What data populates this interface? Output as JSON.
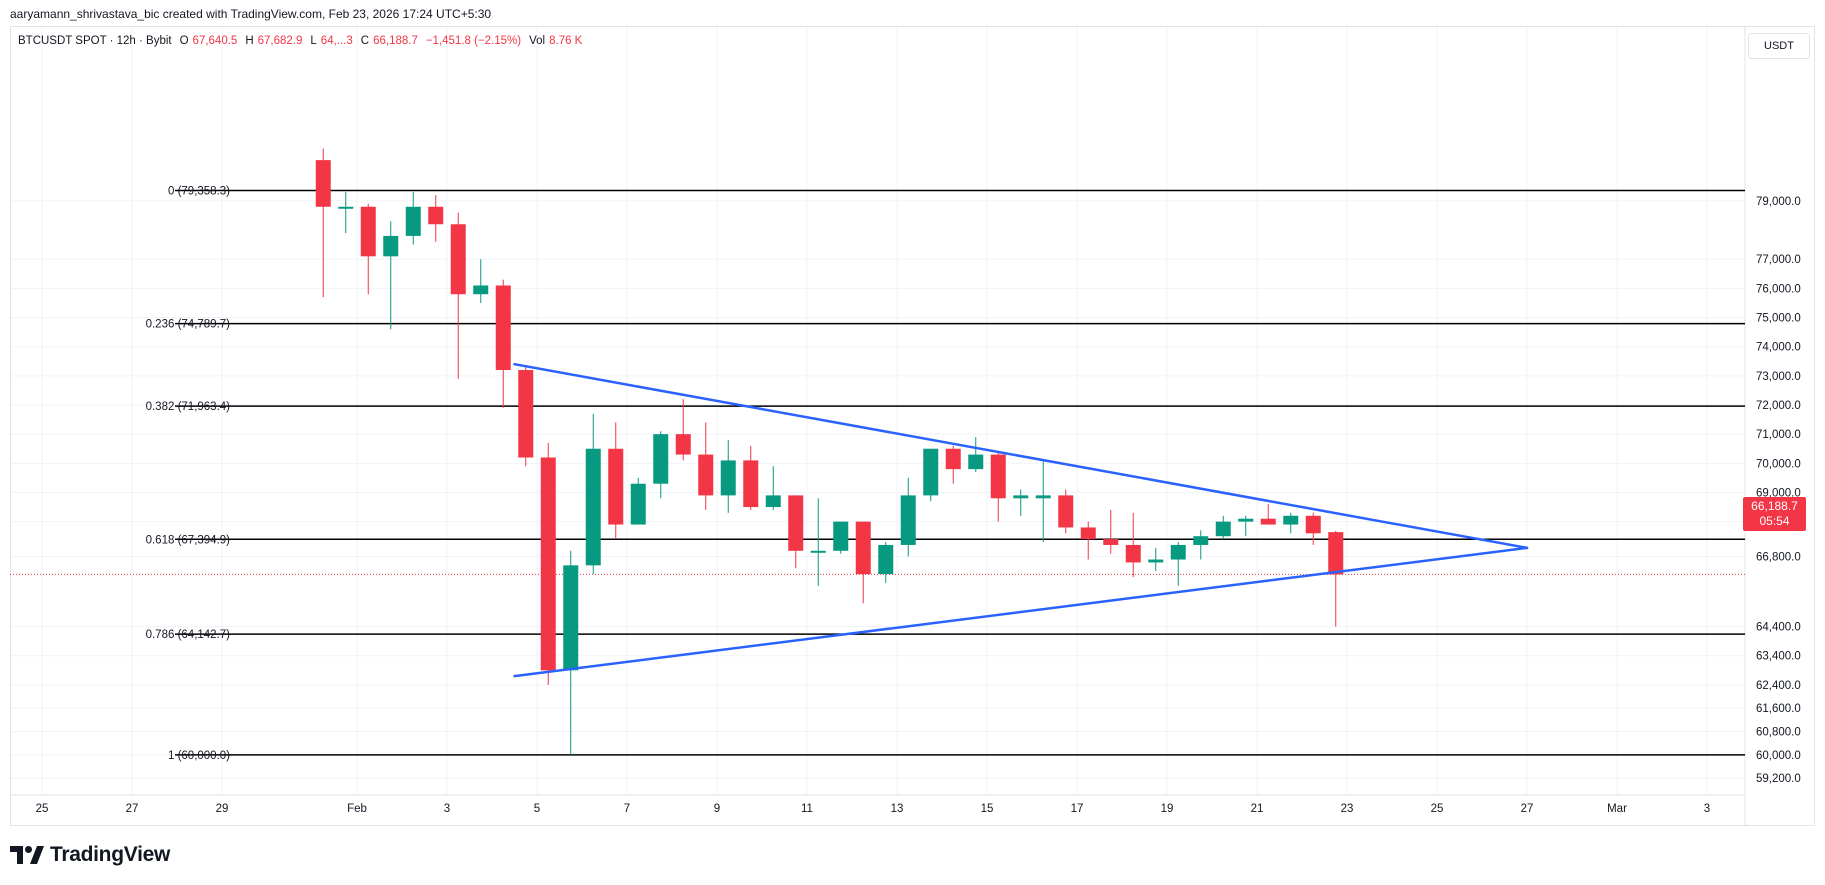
{
  "header": {
    "credit": "aaryamann_shrivastava_bic created with TradingView.com, Feb 23, 2026 17:24 UTC+5:30"
  },
  "legend": {
    "symbol": "BTCUSDT SPOT · 12h · Bybit",
    "open_label": "O",
    "open": "67,640.5",
    "high_label": "H",
    "high": "67,682.9",
    "low_label": "L",
    "low": "64,...3",
    "close_label": "C",
    "close": "66,188.7",
    "change": "−1,451.8 (−2.15%)",
    "vol_label": "Vol",
    "vol": "8.76 K"
  },
  "currency_button": "USDT",
  "brand": {
    "name": "TradingView",
    "icon": "tradingview-logo-icon"
  },
  "last_price": {
    "value": "66,188.7",
    "countdown": "05:54",
    "color": "#f23645"
  },
  "colors": {
    "up": "#089981",
    "down": "#f23645",
    "trendline": "#2962ff",
    "fib": "#000000"
  },
  "chart_data": {
    "type": "candlestick",
    "timeframe": "12h",
    "ylim": [
      58600,
      80400
    ],
    "x_ticks": [
      "25",
      "27",
      "29",
      "Feb",
      "3",
      "5",
      "7",
      "9",
      "11",
      "13",
      "15",
      "17",
      "19",
      "21",
      "23",
      "25",
      "27",
      "Mar",
      "3"
    ],
    "y_ticks": [
      "79,000.0",
      "77,000.0",
      "76,000.0",
      "75,000.0",
      "74,000.0",
      "73,000.0",
      "72,000.0",
      "71,000.0",
      "70,000.0",
      "69,000.0",
      "68,000.0",
      "66,800.0",
      "64,400.0",
      "63,400.0",
      "62,400.0",
      "61,600.0",
      "60,800.0",
      "60,000.0",
      "59,200.0"
    ],
    "fib_levels": [
      {
        "label": "0 (79,358.3)",
        "value": 79358.3
      },
      {
        "label": "0.236 (74,789.7)",
        "value": 74789.7
      },
      {
        "label": "0.382 (71,963.4)",
        "value": 71963.4
      },
      {
        "label": "0.618 (67,394.9)",
        "value": 67394.9
      },
      {
        "label": "0.786 (64,142.7)",
        "value": 64142.7
      },
      {
        "label": "1 (60,000.0)",
        "value": 60000.0
      }
    ],
    "trendlines": [
      {
        "name": "upper",
        "from": [
          "Feb 4 12:00",
          73400
        ],
        "to": [
          "Feb 27 00:00",
          67100
        ]
      },
      {
        "name": "lower",
        "from": [
          "Feb 4 12:00",
          62700
        ],
        "to": [
          "Feb 27 00:00",
          67100
        ]
      }
    ],
    "candles": [
      {
        "t": "Jan 31 00:00",
        "o": 80400,
        "h": 80800,
        "l": 75700,
        "c": 78800
      },
      {
        "t": "Jan 31 12:00",
        "o": 78800,
        "h": 79300,
        "l": 77900,
        "c": 78800
      },
      {
        "t": "Feb 1 00:00",
        "o": 78800,
        "h": 78900,
        "l": 75800,
        "c": 77100
      },
      {
        "t": "Feb 1 12:00",
        "o": 77100,
        "h": 78300,
        "l": 74600,
        "c": 77800
      },
      {
        "t": "Feb 2 00:00",
        "o": 77800,
        "h": 79300,
        "l": 77500,
        "c": 78800
      },
      {
        "t": "Feb 2 12:00",
        "o": 78800,
        "h": 79200,
        "l": 77600,
        "c": 78200
      },
      {
        "t": "Feb 3 00:00",
        "o": 78200,
        "h": 78600,
        "l": 72900,
        "c": 75800
      },
      {
        "t": "Feb 3 12:00",
        "o": 75800,
        "h": 77000,
        "l": 75500,
        "c": 76100
      },
      {
        "t": "Feb 4 00:00",
        "o": 76100,
        "h": 76300,
        "l": 71900,
        "c": 73200
      },
      {
        "t": "Feb 4 12:00",
        "o": 73200,
        "h": 73300,
        "l": 69900,
        "c": 70200
      },
      {
        "t": "Feb 5 00:00",
        "o": 70200,
        "h": 70700,
        "l": 62400,
        "c": 62900
      },
      {
        "t": "Feb 5 12:00",
        "o": 62900,
        "h": 67000,
        "l": 60000,
        "c": 66500
      },
      {
        "t": "Feb 6 00:00",
        "o": 66500,
        "h": 71700,
        "l": 66200,
        "c": 70500
      },
      {
        "t": "Feb 6 12:00",
        "o": 70500,
        "h": 71400,
        "l": 67400,
        "c": 67900
      },
      {
        "t": "Feb 7 00:00",
        "o": 67900,
        "h": 69500,
        "l": 67900,
        "c": 69300
      },
      {
        "t": "Feb 7 12:00",
        "o": 69300,
        "h": 71100,
        "l": 68800,
        "c": 71000
      },
      {
        "t": "Feb 8 00:00",
        "o": 71000,
        "h": 72200,
        "l": 70100,
        "c": 70300
      },
      {
        "t": "Feb 8 12:00",
        "o": 70300,
        "h": 71400,
        "l": 68400,
        "c": 68900
      },
      {
        "t": "Feb 9 00:00",
        "o": 68900,
        "h": 70800,
        "l": 68300,
        "c": 70100
      },
      {
        "t": "Feb 9 12:00",
        "o": 70100,
        "h": 70600,
        "l": 68400,
        "c": 68500
      },
      {
        "t": "Feb 10 00:00",
        "o": 68500,
        "h": 69900,
        "l": 68400,
        "c": 68900
      },
      {
        "t": "Feb 10 12:00",
        "o": 68900,
        "h": 68900,
        "l": 66400,
        "c": 67000
      },
      {
        "t": "Feb 11 00:00",
        "o": 67000,
        "h": 68800,
        "l": 65800,
        "c": 67000
      },
      {
        "t": "Feb 11 12:00",
        "o": 67000,
        "h": 68000,
        "l": 66900,
        "c": 68000
      },
      {
        "t": "Feb 12 00:00",
        "o": 68000,
        "h": 68000,
        "l": 65200,
        "c": 66200
      },
      {
        "t": "Feb 12 12:00",
        "o": 66200,
        "h": 67300,
        "l": 65900,
        "c": 67200
      },
      {
        "t": "Feb 13 00:00",
        "o": 67200,
        "h": 69500,
        "l": 66800,
        "c": 68900
      },
      {
        "t": "Feb 13 12:00",
        "o": 68900,
        "h": 70500,
        "l": 68700,
        "c": 70500
      },
      {
        "t": "Feb 14 00:00",
        "o": 70500,
        "h": 70600,
        "l": 69300,
        "c": 69800
      },
      {
        "t": "Feb 14 12:00",
        "o": 69800,
        "h": 70900,
        "l": 69700,
        "c": 70300
      },
      {
        "t": "Feb 15 00:00",
        "o": 70300,
        "h": 70400,
        "l": 68000,
        "c": 68800
      },
      {
        "t": "Feb 15 12:00",
        "o": 68800,
        "h": 69100,
        "l": 68200,
        "c": 68900
      },
      {
        "t": "Feb 16 00:00",
        "o": 68800,
        "h": 70100,
        "l": 67300,
        "c": 68900
      },
      {
        "t": "Feb 16 12:00",
        "o": 68900,
        "h": 69100,
        "l": 67600,
        "c": 67800
      },
      {
        "t": "Feb 17 00:00",
        "o": 67800,
        "h": 68000,
        "l": 66700,
        "c": 67400
      },
      {
        "t": "Feb 17 12:00",
        "o": 67400,
        "h": 68400,
        "l": 66900,
        "c": 67200
      },
      {
        "t": "Feb 18 00:00",
        "o": 67200,
        "h": 68300,
        "l": 66100,
        "c": 66600
      },
      {
        "t": "Feb 18 12:00",
        "o": 66600,
        "h": 67100,
        "l": 66300,
        "c": 66700
      },
      {
        "t": "Feb 19 00:00",
        "o": 66700,
        "h": 67300,
        "l": 65800,
        "c": 67200
      },
      {
        "t": "Feb 19 12:00",
        "o": 67200,
        "h": 67700,
        "l": 66700,
        "c": 67500
      },
      {
        "t": "Feb 20 00:00",
        "o": 67500,
        "h": 68200,
        "l": 67400,
        "c": 68000
      },
      {
        "t": "Feb 20 12:00",
        "o": 68000,
        "h": 68200,
        "l": 67500,
        "c": 68100
      },
      {
        "t": "Feb 21 00:00",
        "o": 68100,
        "h": 68600,
        "l": 67900,
        "c": 67900
      },
      {
        "t": "Feb 21 12:00",
        "o": 67900,
        "h": 68300,
        "l": 67600,
        "c": 68200
      },
      {
        "t": "Feb 22 00:00",
        "o": 68200,
        "h": 68300,
        "l": 67200,
        "c": 67600
      },
      {
        "t": "Feb 22 12:00",
        "o": 67640.5,
        "h": 67682.9,
        "l": 64400,
        "c": 66188.7
      }
    ]
  }
}
